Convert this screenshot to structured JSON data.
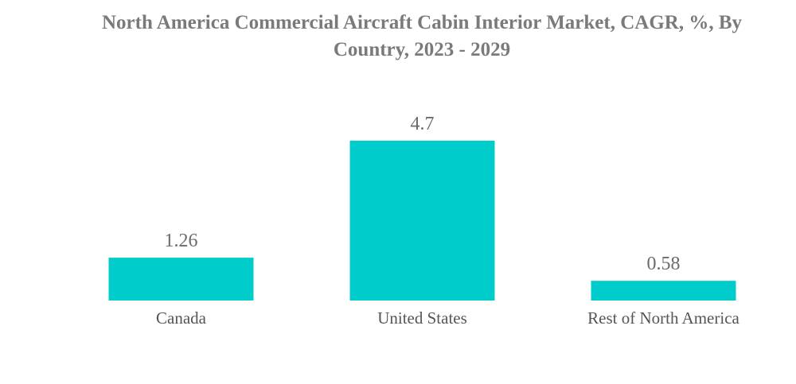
{
  "chart_data": {
    "type": "bar",
    "title": "North America Commercial Aircraft Cabin Interior Market, CAGR, %, By Country, 2023 - 2029",
    "categories": [
      "Canada",
      "United States",
      "Rest of North America"
    ],
    "values": [
      1.26,
      4.7,
      0.58
    ],
    "value_labels": [
      "1.26",
      "4.7",
      "0.58"
    ],
    "xlabel": "",
    "ylabel": "",
    "ylim": [
      0,
      4.7
    ],
    "grid": false,
    "legend": "none",
    "bar_color": "#00CCCC"
  }
}
